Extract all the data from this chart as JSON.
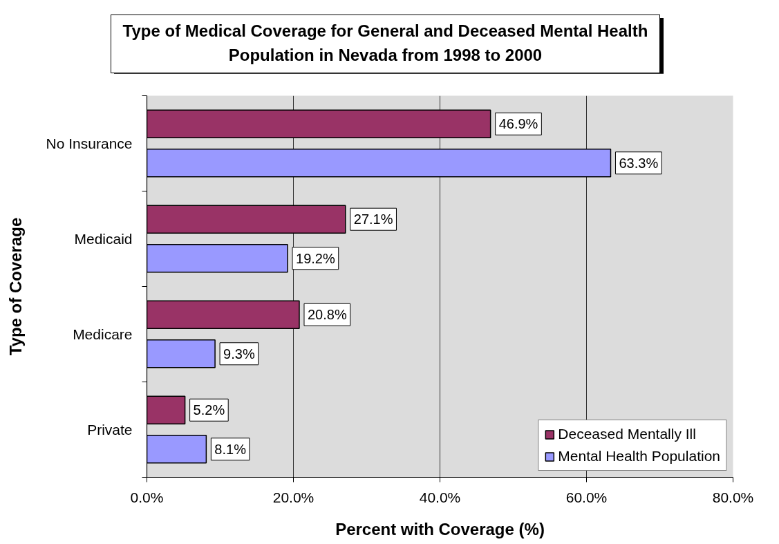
{
  "chart_data": {
    "type": "bar",
    "orientation": "horizontal",
    "title": "Type of Medical Coverage for General and Deceased Mental Health Population in Nevada from 1998 to 2000",
    "xlabel": "Percent with Coverage (%)",
    "ylabel": "Type of Coverage",
    "categories": [
      "No Insurance",
      "Medicaid",
      "Medicare",
      "Private"
    ],
    "series": [
      {
        "name": "Deceased Mentally Ill",
        "color": "#993366",
        "values": [
          46.9,
          27.1,
          20.8,
          5.2
        ],
        "value_labels": [
          "46.9%",
          "27.1%",
          "20.8%",
          "5.2%"
        ]
      },
      {
        "name": "Mental Health Population",
        "color": "#9999ff",
        "values": [
          63.3,
          19.2,
          9.3,
          8.1
        ],
        "value_labels": [
          "63.3%",
          "19.2%",
          "9.3%",
          "8.1%"
        ]
      }
    ],
    "xlim": [
      0,
      80
    ],
    "xticks": [
      {
        "value": 0,
        "label": "0.0%"
      },
      {
        "value": 20,
        "label": "20.0%"
      },
      {
        "value": 40,
        "label": "40.0%"
      },
      {
        "value": 60,
        "label": "60.0%"
      },
      {
        "value": 80,
        "label": "80.0%"
      }
    ],
    "grid": "x",
    "legend": "bottom right"
  }
}
